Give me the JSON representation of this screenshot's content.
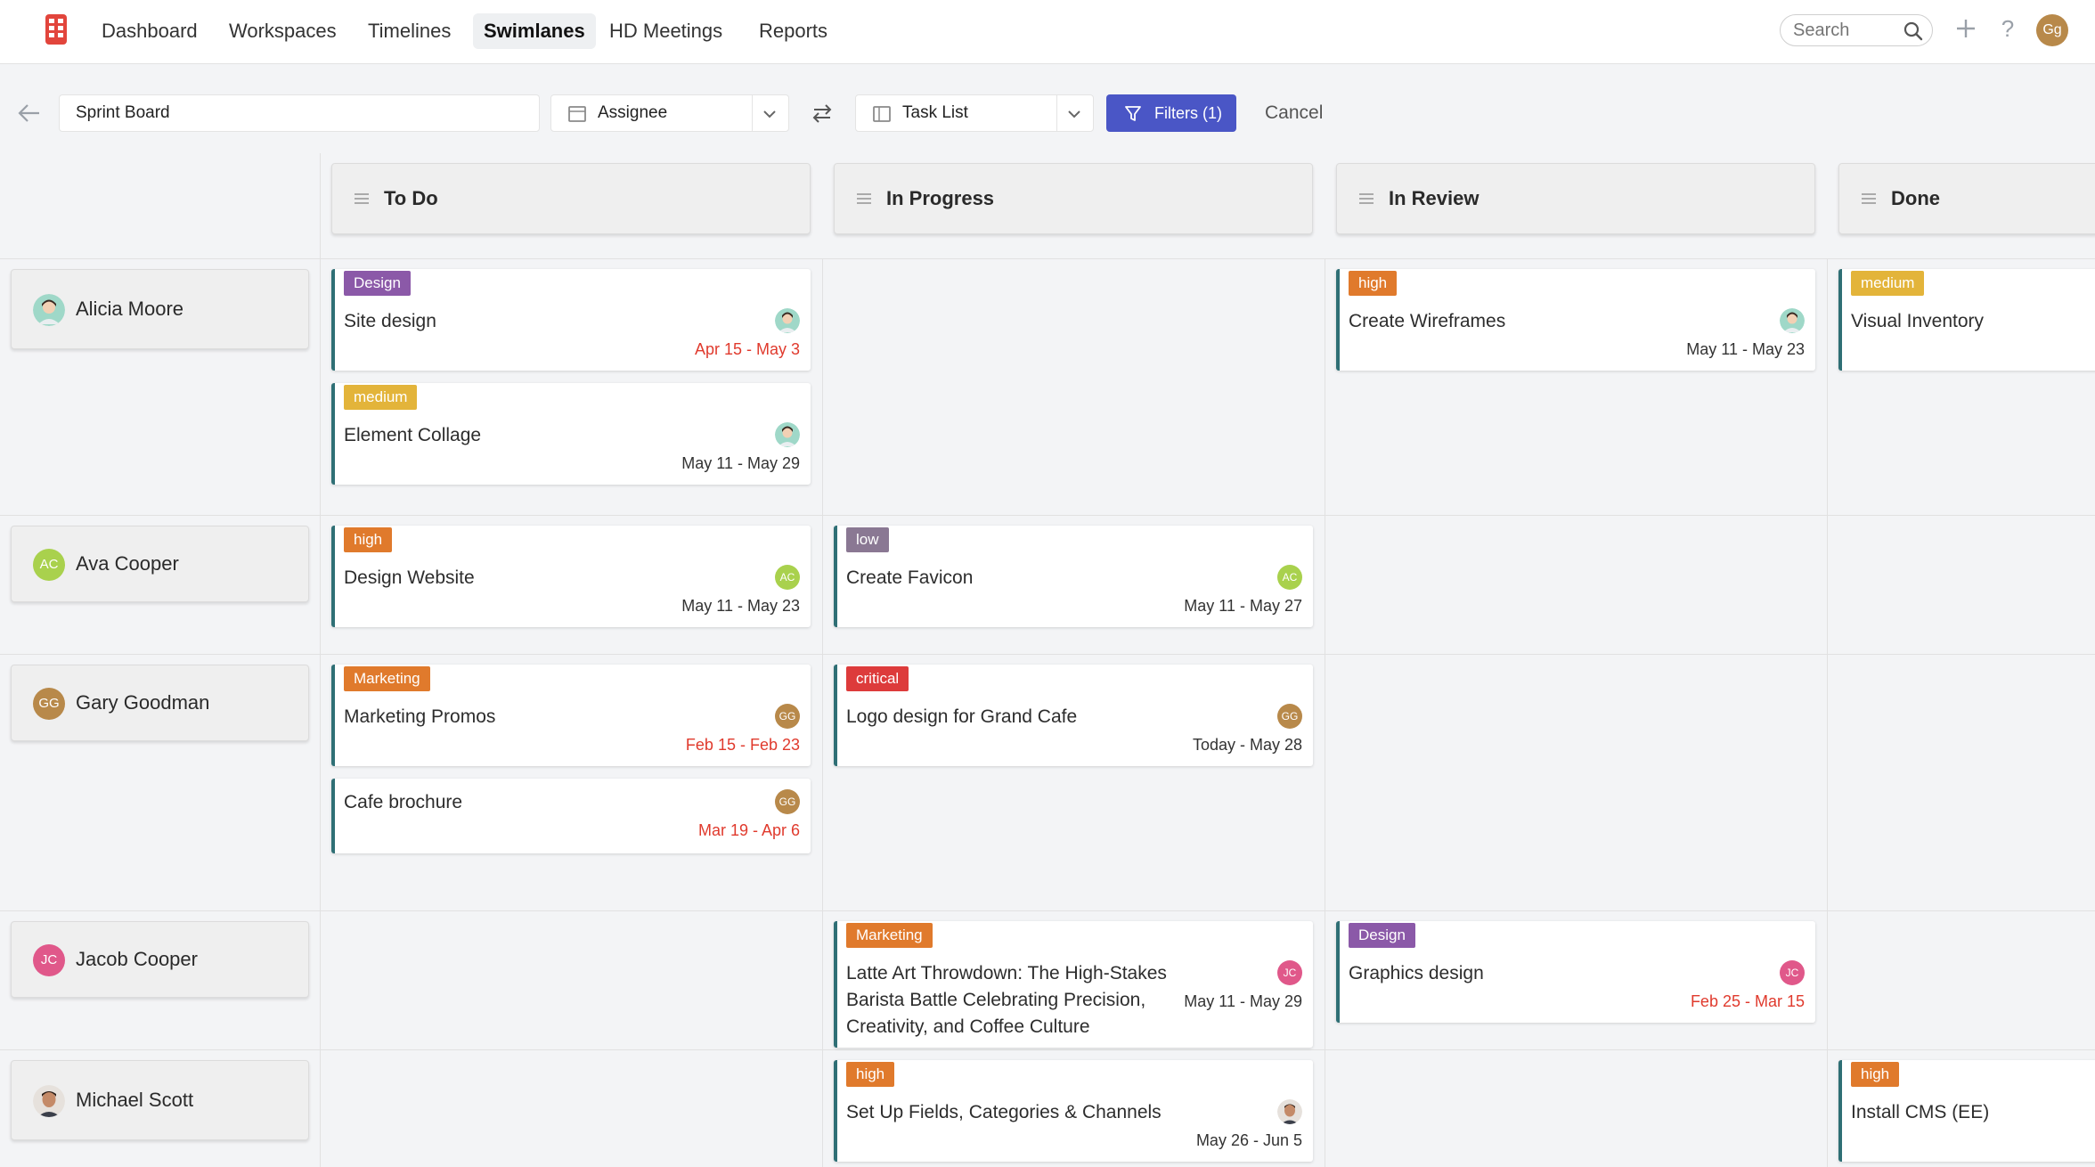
{
  "nav": {
    "items": [
      {
        "label": "Dashboard"
      },
      {
        "label": "Workspaces"
      },
      {
        "label": "Timelines"
      },
      {
        "label": "Swimlanes",
        "active": true
      },
      {
        "label": "HD Meetings"
      },
      {
        "label": "Reports"
      }
    ],
    "search_placeholder": "Search",
    "help_label": "?",
    "user_initials": "Gg"
  },
  "toolbar": {
    "board_name": "Sprint Board",
    "group_by": "Assignee",
    "view": "Task List",
    "filters_label": "Filters (1)",
    "cancel_label": "Cancel"
  },
  "columns": [
    {
      "title": "To Do"
    },
    {
      "title": "In Progress"
    },
    {
      "title": "In Review"
    },
    {
      "title": "Done"
    }
  ],
  "lanes": [
    {
      "name": "Alicia Moore",
      "initials": "",
      "avatar_color": "#9fd8c8"
    },
    {
      "name": "Ava Cooper",
      "initials": "AC",
      "avatar_color": "#a9d14d"
    },
    {
      "name": "Gary Goodman",
      "initials": "GG",
      "avatar_color": "#b8894a"
    },
    {
      "name": "Jacob Cooper",
      "initials": "JC",
      "avatar_color": "#e0588a"
    },
    {
      "name": "Michael Scott",
      "initials": "",
      "avatar_color": "#c9a080"
    }
  ],
  "tag_colors": {
    "Design": "#8b59a8",
    "medium": "#e3b43a",
    "high": "#e07a2c",
    "low": "#8a7893",
    "Marketing": "#e07a2c",
    "critical": "#dd3b3b"
  },
  "cards": [
    {
      "lane": 0,
      "col": 0,
      "tag": "Design",
      "title": "Site design",
      "date": "Apr 15 - May 3",
      "overdue": true,
      "assignee": ""
    },
    {
      "lane": 0,
      "col": 0,
      "tag": "medium",
      "title": "Element Collage",
      "date": "May 11 - May 29",
      "overdue": false,
      "assignee": ""
    },
    {
      "lane": 0,
      "col": 2,
      "tag": "high",
      "title": "Create Wireframes",
      "date": "May 11 - May 23",
      "overdue": false,
      "assignee": ""
    },
    {
      "lane": 0,
      "col": 3,
      "tag": "medium",
      "title": "Visual Inventory",
      "date": "",
      "overdue": false,
      "assignee": ""
    },
    {
      "lane": 1,
      "col": 0,
      "tag": "high",
      "title": "Design Website",
      "date": "May 11 - May 23",
      "overdue": false,
      "assignee": "AC"
    },
    {
      "lane": 1,
      "col": 1,
      "tag": "low",
      "title": "Create Favicon",
      "date": "May 11 - May 27",
      "overdue": false,
      "assignee": "AC"
    },
    {
      "lane": 2,
      "col": 0,
      "tag": "Marketing",
      "title": "Marketing Promos",
      "date": "Feb 15 - Feb 23",
      "overdue": true,
      "assignee": "GG"
    },
    {
      "lane": 2,
      "col": 0,
      "tag": "",
      "title": "Cafe brochure",
      "date": "Mar 19 - Apr 6",
      "overdue": true,
      "assignee": "GG"
    },
    {
      "lane": 2,
      "col": 1,
      "tag": "critical",
      "title": "Logo design for Grand Cafe",
      "date": "Today - May 28",
      "overdue": false,
      "assignee": "GG"
    },
    {
      "lane": 3,
      "col": 1,
      "tag": "Marketing",
      "title_lines": [
        "Latte Art Throwdown: The High-Stakes",
        "Barista Battle Celebrating Precision,",
        "Creativity, and Coffee Culture"
      ],
      "date": "May 11 - May 29",
      "overdue": false,
      "assignee": "JC"
    },
    {
      "lane": 3,
      "col": 2,
      "tag": "Design",
      "title": "Graphics design",
      "date": "Feb 25 - Mar 15",
      "overdue": true,
      "assignee": "JC"
    },
    {
      "lane": 4,
      "col": 1,
      "tag": "high",
      "title": "Set Up Fields, Categories & Channels",
      "date": "May 26 - Jun 5",
      "overdue": false,
      "assignee": ""
    },
    {
      "lane": 4,
      "col": 3,
      "tag": "high",
      "title": "Install CMS (EE)",
      "date": "",
      "overdue": false,
      "assignee": ""
    }
  ]
}
